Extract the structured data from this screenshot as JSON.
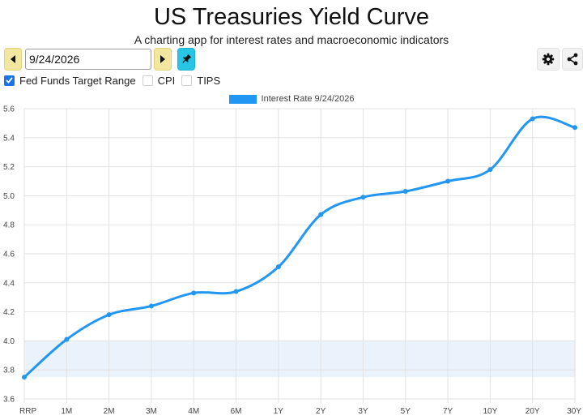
{
  "header": {
    "title": "US Treasuries Yield Curve",
    "subtitle": "A charting app for interest rates and macroeconomic indicators"
  },
  "toolbar": {
    "prev_icon": "caret-left-icon",
    "next_icon": "caret-right-icon",
    "pin_icon": "pin-icon",
    "settings_icon": "gear-icon",
    "share_icon": "share-icon",
    "date_value": "9/24/2026"
  },
  "options": [
    {
      "label": "Fed Funds Target Range",
      "checked": true
    },
    {
      "label": "CPI",
      "checked": false
    },
    {
      "label": "TIPS",
      "checked": false
    }
  ],
  "colors": {
    "series": "#2196f3",
    "band": "#eaf3fc",
    "pin_button": "#28c6e6",
    "nav_button": "#f3e7a0",
    "checkbox": "#1a73e8"
  },
  "chart_data": {
    "type": "line",
    "categories": [
      "RRP",
      "1M",
      "2M",
      "3M",
      "4M",
      "6M",
      "1Y",
      "2Y",
      "3Y",
      "5Y",
      "7Y",
      "10Y",
      "20Y",
      "30Y"
    ],
    "series": [
      {
        "name": "Interest Rate 9/24/2026",
        "values": [
          3.75,
          4.01,
          4.18,
          4.24,
          4.33,
          4.34,
          4.51,
          4.87,
          4.99,
          5.03,
          5.1,
          5.18,
          5.53,
          5.47
        ]
      }
    ],
    "fed_funds_range": [
      3.75,
      4.0
    ],
    "yticks": [
      "5.6",
      "5.4",
      "5.2",
      "5.0",
      "4.8",
      "4.6",
      "4.4",
      "4.2",
      "4.0",
      "3.8",
      "3.6"
    ],
    "ylim": [
      3.6,
      5.6
    ],
    "grid": true,
    "legend": "top-center",
    "title": "",
    "xlabel": "",
    "ylabel": ""
  }
}
